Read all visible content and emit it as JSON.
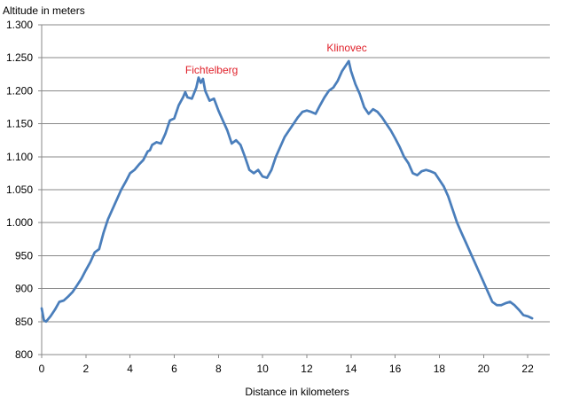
{
  "chart_data": {
    "type": "line",
    "ylabel": "Altitude in meters",
    "xlabel": "Distance in kilometers",
    "title": "",
    "xlim": [
      0,
      23
    ],
    "ylim": [
      800,
      1300
    ],
    "x_ticks": [
      0,
      2,
      4,
      6,
      8,
      10,
      12,
      14,
      16,
      18,
      20,
      22
    ],
    "y_ticks": [
      800,
      850,
      900,
      950,
      1000,
      1050,
      1100,
      1150,
      1200,
      1250,
      1300
    ],
    "y_tick_labels": [
      "800",
      "850",
      "900",
      "950",
      "1.000",
      "1.050",
      "1.100",
      "1.150",
      "1.200",
      "1.250",
      "1.300"
    ],
    "grid": "horizontal",
    "legend": "none",
    "line_color": "#4a7ebb",
    "annotation_color": "#e0202a",
    "annotations": [
      {
        "text": "Fichtelberg",
        "x": 6.5,
        "y": 1226
      },
      {
        "text": "Klinovec",
        "x": 12.9,
        "y": 1260
      }
    ],
    "series": [
      {
        "x": [
          0.0,
          0.1,
          0.2,
          0.4,
          0.6,
          0.8,
          1.0,
          1.2,
          1.4,
          1.6,
          1.8,
          2.0,
          2.2,
          2.4,
          2.6,
          2.8,
          3.0,
          3.2,
          3.4,
          3.6,
          3.8,
          4.0,
          4.2,
          4.4,
          4.6,
          4.8,
          4.9,
          5.0,
          5.2,
          5.4,
          5.6,
          5.8,
          6.0,
          6.2,
          6.4,
          6.5,
          6.6,
          6.8,
          7.0,
          7.1,
          7.2,
          7.3,
          7.4,
          7.6,
          7.8,
          8.0,
          8.2,
          8.4,
          8.6,
          8.8,
          9.0,
          9.2,
          9.4,
          9.6,
          9.8,
          10.0,
          10.2,
          10.4,
          10.6,
          10.8,
          11.0,
          11.2,
          11.4,
          11.6,
          11.8,
          12.0,
          12.2,
          12.4,
          12.6,
          12.8,
          13.0,
          13.2,
          13.4,
          13.6,
          13.8,
          13.9,
          14.0,
          14.2,
          14.4,
          14.6,
          14.8,
          15.0,
          15.2,
          15.4,
          15.6,
          15.8,
          16.0,
          16.2,
          16.4,
          16.6,
          16.8,
          17.0,
          17.2,
          17.4,
          17.6,
          17.8,
          18.0,
          18.2,
          18.4,
          18.6,
          18.8,
          19.0,
          19.2,
          19.4,
          19.6,
          19.8,
          20.0,
          20.2,
          20.4,
          20.6,
          20.8,
          21.0,
          21.2,
          21.4,
          21.6,
          21.8,
          22.0,
          22.2
        ],
        "y": [
          870,
          852,
          850,
          858,
          868,
          880,
          882,
          888,
          895,
          905,
          915,
          928,
          940,
          955,
          960,
          985,
          1005,
          1020,
          1035,
          1050,
          1062,
          1075,
          1080,
          1088,
          1095,
          1108,
          1110,
          1118,
          1122,
          1120,
          1135,
          1155,
          1158,
          1178,
          1190,
          1198,
          1190,
          1188,
          1205,
          1220,
          1212,
          1218,
          1200,
          1185,
          1188,
          1170,
          1155,
          1140,
          1120,
          1125,
          1118,
          1100,
          1080,
          1075,
          1080,
          1070,
          1068,
          1080,
          1100,
          1115,
          1130,
          1140,
          1150,
          1160,
          1168,
          1170,
          1168,
          1165,
          1178,
          1190,
          1200,
          1205,
          1215,
          1230,
          1240,
          1245,
          1230,
          1210,
          1195,
          1175,
          1165,
          1172,
          1168,
          1160,
          1150,
          1140,
          1128,
          1115,
          1100,
          1090,
          1075,
          1072,
          1078,
          1080,
          1078,
          1075,
          1065,
          1055,
          1040,
          1020,
          1000,
          985,
          970,
          955,
          940,
          925,
          910,
          895,
          880,
          875,
          875,
          878,
          880,
          875,
          868,
          860,
          858,
          855
        ]
      }
    ]
  }
}
